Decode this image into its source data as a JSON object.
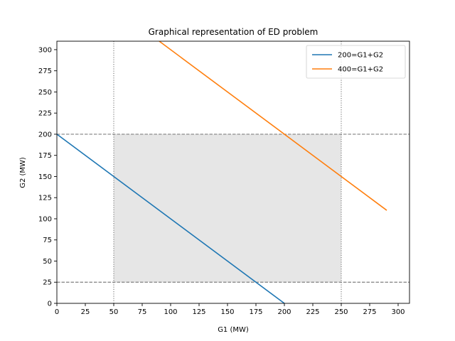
{
  "chart_data": {
    "type": "line",
    "title": "Graphical representation of ED problem",
    "xlabel": "G1 (MW)",
    "ylabel": "G2 (MW)",
    "xlim": [
      0,
      310
    ],
    "ylim": [
      0,
      310
    ],
    "xticks": [
      0,
      25,
      50,
      75,
      100,
      125,
      150,
      175,
      200,
      225,
      250,
      275,
      300
    ],
    "yticks": [
      0,
      25,
      50,
      75,
      100,
      125,
      150,
      175,
      200,
      225,
      250,
      275,
      300
    ],
    "grid": false,
    "legend_position": "upper right",
    "series": [
      {
        "name": "200=G1+G2",
        "color": "#1f77b4",
        "x": [
          0,
          200
        ],
        "y": [
          200,
          0
        ]
      },
      {
        "name": "400=G1+G2",
        "color": "#ff7f0e",
        "x": [
          90,
          290
        ],
        "y": [
          310,
          110
        ]
      }
    ],
    "feasible_region": {
      "x": [
        50,
        250
      ],
      "y": [
        25,
        200
      ],
      "color": "#e6e6e6"
    },
    "hlines": [
      {
        "y": 25,
        "style": "dashed",
        "color": "#808080"
      },
      {
        "y": 200,
        "style": "dashed",
        "color": "#808080"
      }
    ],
    "vlines": [
      {
        "x": 50,
        "style": "dotted",
        "color": "#808080"
      },
      {
        "x": 250,
        "style": "dotted",
        "color": "#808080"
      }
    ]
  }
}
